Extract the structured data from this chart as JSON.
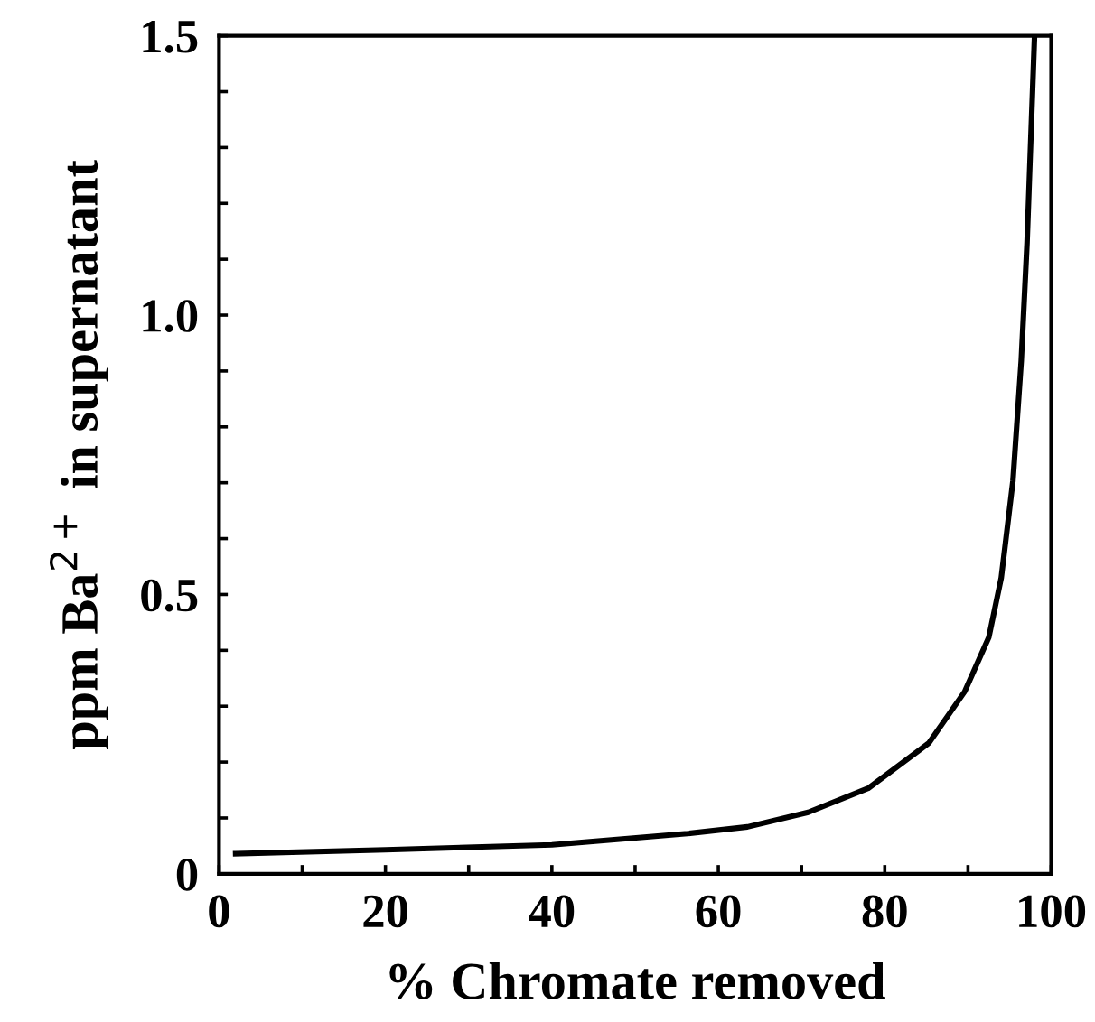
{
  "chart_data": {
    "type": "line",
    "xlabel": "% Chromate removed",
    "ylabel": "ppm Ba$^{2+}$ in supernatant",
    "x": [
      2,
      20,
      40,
      56.3,
      63.5,
      70.8,
      78,
      85.3,
      89.6,
      92.5,
      94,
      95.4,
      96.4,
      97.1,
      98
    ],
    "series": [
      {
        "color": "#000000",
        "values": [
          0.036,
          0.043,
          0.052,
          0.072,
          0.084,
          0.11,
          0.153,
          0.234,
          0.326,
          0.423,
          0.53,
          0.703,
          0.918,
          1.13,
          1.5
        ]
      }
    ],
    "xlim": [
      0,
      100
    ],
    "ylim": [
      0,
      1.5
    ],
    "xticks": [
      0,
      {
        "value": 10,
        "label": null
      },
      20,
      {
        "value": 30,
        "label": null
      },
      40,
      {
        "value": 50,
        "label": null
      },
      60,
      {
        "value": 70,
        "label": null
      },
      80,
      {
        "value": 90,
        "label": null
      },
      100
    ],
    "yticks": [
      0,
      {
        "value": 0.1,
        "label": null
      },
      {
        "value": 0.2,
        "label": null
      },
      {
        "value": 0.3,
        "label": null
      },
      {
        "value": 0.4,
        "label": null
      },
      0.5,
      {
        "value": 0.6,
        "label": null
      },
      {
        "value": 0.7,
        "label": null
      },
      {
        "value": 0.8,
        "label": null
      },
      {
        "value": 0.9,
        "label": null
      },
      {
        "value": 1.0,
        "label": "1.0"
      },
      {
        "value": 1.1,
        "label": null
      },
      {
        "value": 1.2,
        "label": null
      },
      {
        "value": 1.3,
        "label": null
      },
      {
        "value": 1.4,
        "label": null
      },
      1.5
    ],
    "grid": false,
    "marker": "none",
    "line_style": "solid",
    "legend": false
  }
}
